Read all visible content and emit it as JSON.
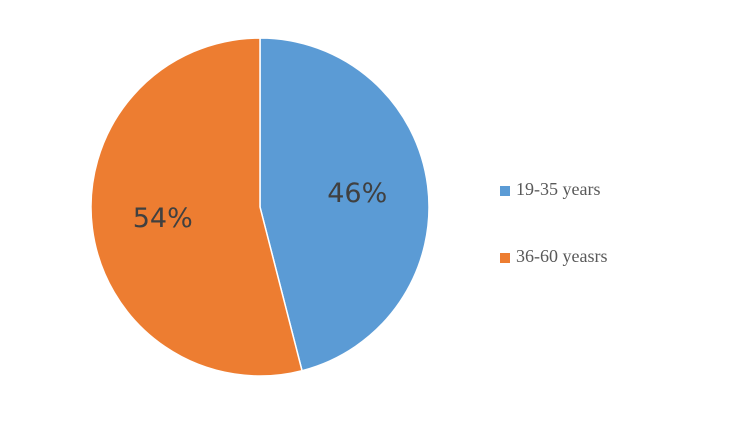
{
  "chart_data": {
    "type": "pie",
    "categories": [
      "19-35 years",
      "36-60 yeasrs"
    ],
    "values": [
      46,
      54
    ],
    "value_labels": [
      "46%",
      "54%"
    ],
    "colors": [
      "#5b9bd5",
      "#ed7d31"
    ],
    "legend": "right"
  }
}
